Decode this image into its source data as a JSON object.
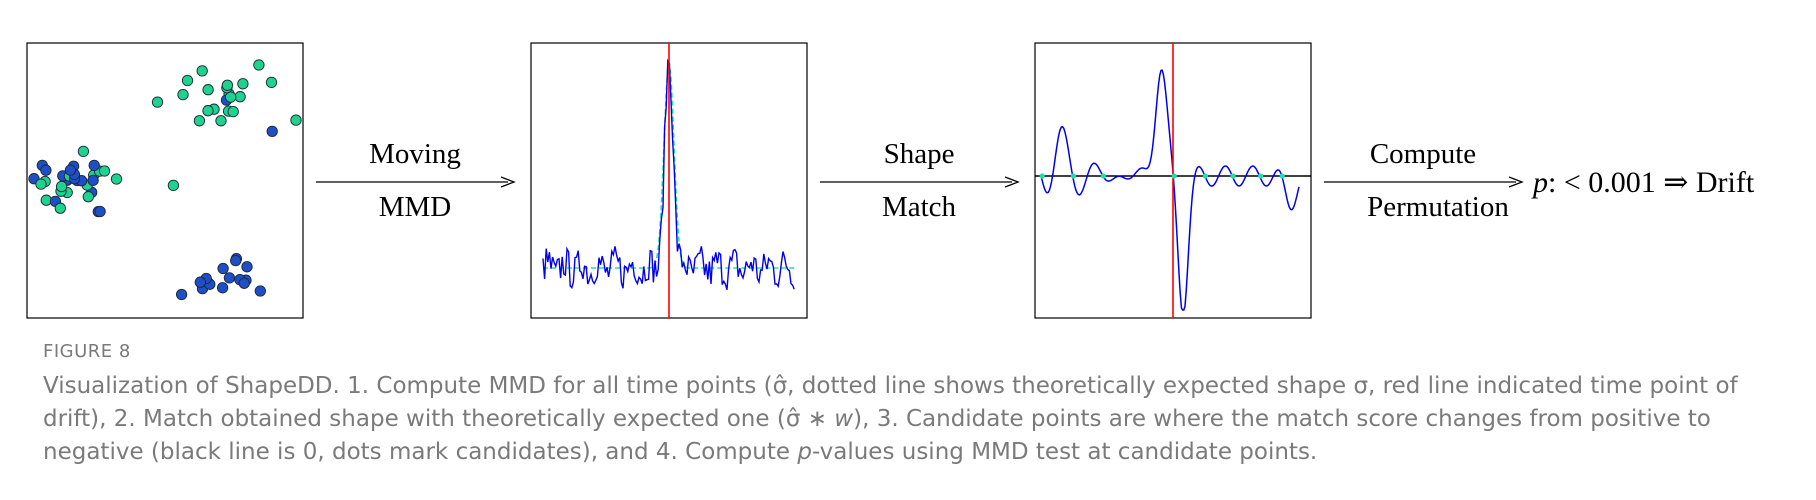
{
  "diagram": {
    "steps": [
      {
        "line1": "Moving",
        "line2": "MMD"
      },
      {
        "line1": "Shape",
        "line2": "Match"
      },
      {
        "line1": "Compute",
        "line2": "Permutation"
      }
    ],
    "result": {
      "prefix": "p",
      "suffix": ": < 0.001 ⇒ Drift"
    },
    "colors": {
      "signal": "#0000ee",
      "drift_marker": "#ff0000",
      "expected_shape": "#19e3a8",
      "cluster_a": "#1fd38f",
      "cluster_b": "#1f4fc8",
      "zero_line": "#000000"
    },
    "icons": [
      "scatter-panel",
      "mmd-curve-panel",
      "shape-match-panel",
      "arrow-right"
    ]
  },
  "caption": {
    "label": "FIGURE 8",
    "text": [
      "Visualization of ShapeDD. 1. Compute MMD for all time points (σ̂, dotted line shows theoretically expected shape σ, red line indicated time point of drift), 2. Match obtained shape with theoretically expected one (σ̂ ∗ ",
      "w",
      "), 3. Candidate points are where the match score changes from positive to negative (black line is 0, dots mark candidates), and 4. Compute ",
      "p",
      "-values using MMD test at candidate points."
    ]
  }
}
